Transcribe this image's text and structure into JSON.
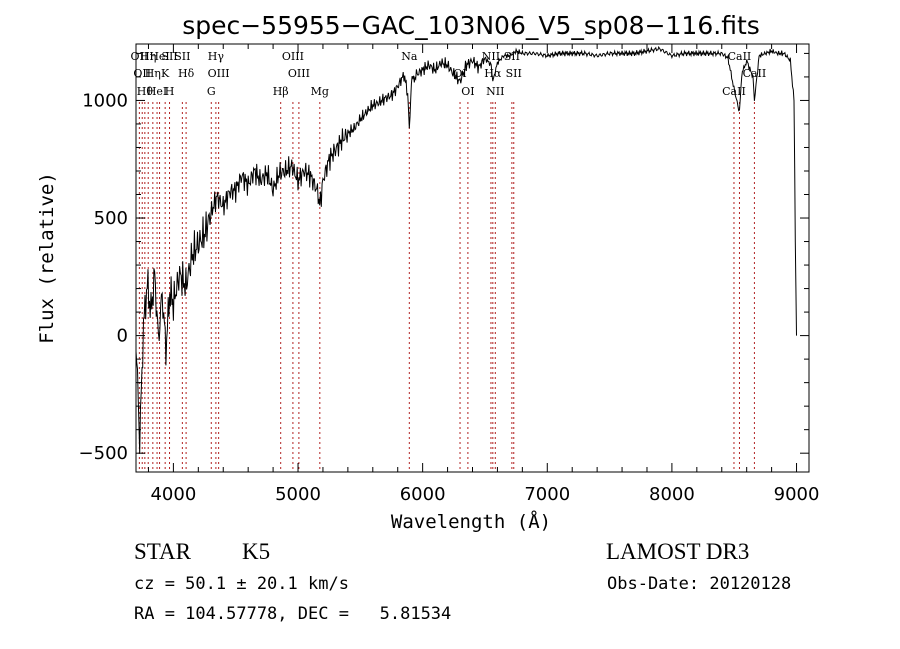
{
  "chart_data": {
    "type": "line",
    "title": "spec−55955−GAC_103N06_V5_sp08−116.fits",
    "xlabel": "Wavelength (Å)",
    "ylabel": "Flux (relative)",
    "xlim": [
      3700,
      9100
    ],
    "ylim": [
      -580,
      1240
    ],
    "xticks": [
      4000,
      5000,
      6000,
      7000,
      8000,
      9000
    ],
    "yticks": [
      -500,
      0,
      500,
      1000
    ],
    "grid": false,
    "series": [
      {
        "name": "flux",
        "x": [
          3700,
          3730,
          3760,
          3790,
          3820,
          3850,
          3880,
          3910,
          3940,
          3970,
          4000,
          4050,
          4100,
          4150,
          4200,
          4250,
          4300,
          4350,
          4400,
          4450,
          4500,
          4550,
          4600,
          4650,
          4700,
          4750,
          4800,
          4850,
          4900,
          4950,
          5000,
          5050,
          5100,
          5150,
          5180,
          5200,
          5250,
          5300,
          5350,
          5400,
          5450,
          5500,
          5550,
          5600,
          5650,
          5700,
          5750,
          5800,
          5850,
          5880,
          5893,
          5910,
          5950,
          6000,
          6050,
          6100,
          6150,
          6200,
          6250,
          6300,
          6350,
          6400,
          6450,
          6500,
          6550,
          6563,
          6600,
          6650,
          6700,
          6750,
          6800,
          6900,
          7000,
          7100,
          7200,
          7300,
          7400,
          7500,
          7600,
          7700,
          7800,
          7900,
          8000,
          8100,
          8200,
          8300,
          8400,
          8450,
          8498,
          8542,
          8560,
          8600,
          8650,
          8662,
          8700,
          8750,
          8800,
          8850,
          8900,
          8950,
          8980,
          8990,
          9000
        ],
        "y": [
          -20,
          -450,
          40,
          220,
          100,
          260,
          -20,
          180,
          -60,
          180,
          140,
          260,
          210,
          340,
          390,
          430,
          520,
          590,
          550,
          610,
          620,
          680,
          640,
          700,
          660,
          690,
          620,
          690,
          700,
          720,
          660,
          700,
          680,
          620,
          560,
          660,
          750,
          790,
          830,
          860,
          880,
          920,
          950,
          980,
          990,
          1010,
          1020,
          1060,
          1110,
          1030,
          880,
          1080,
          1110,
          1130,
          1150,
          1130,
          1160,
          1150,
          1110,
          1080,
          1150,
          1170,
          1140,
          1180,
          1150,
          1080,
          1160,
          1190,
          1190,
          1210,
          1200,
          1200,
          1190,
          1200,
          1200,
          1200,
          1190,
          1200,
          1200,
          1200,
          1210,
          1220,
          1190,
          1200,
          1200,
          1200,
          1200,
          1180,
          1050,
          950,
          1110,
          1170,
          1100,
          1000,
          1190,
          1200,
          1210,
          1200,
          1200,
          1170,
          1000,
          400,
          0
        ]
      }
    ],
    "lines": [
      {
        "wave": 3727,
        "labels": [
          "OII"
        ]
      },
      {
        "wave": 3750,
        "labels": [
          "OII"
        ]
      },
      {
        "wave": 3771,
        "labels": [
          "Hθ"
        ]
      },
      {
        "wave": 3798,
        "labels": [
          "Hη"
        ]
      },
      {
        "wave": 3835,
        "labels": [
          "Hη"
        ]
      },
      {
        "wave": 3869,
        "labels": [
          "HeI"
        ]
      },
      {
        "wave": 3889,
        "labels": [
          "HeI"
        ]
      },
      {
        "wave": 3934,
        "labels": [
          "K"
        ]
      },
      {
        "wave": 3969,
        "labels": [
          "H",
          "SII"
        ]
      },
      {
        "wave": 4072,
        "labels": [
          "SII"
        ]
      },
      {
        "wave": 4102,
        "labels": [
          "Hδ"
        ]
      },
      {
        "wave": 4304,
        "labels": [
          "G"
        ]
      },
      {
        "wave": 4341,
        "labels": [
          "Hγ"
        ]
      },
      {
        "wave": 4363,
        "labels": [
          "OIII"
        ]
      },
      {
        "wave": 4861,
        "labels": [
          "Hβ"
        ]
      },
      {
        "wave": 4959,
        "labels": [
          "OIII"
        ]
      },
      {
        "wave": 5007,
        "labels": [
          "OIII"
        ]
      },
      {
        "wave": 5175,
        "labels": [
          "Mg"
        ]
      },
      {
        "wave": 5893,
        "labels": [
          "Na"
        ]
      },
      {
        "wave": 6300,
        "labels": [
          "OI"
        ]
      },
      {
        "wave": 6363,
        "labels": [
          "OI"
        ]
      },
      {
        "wave": 6548,
        "labels": [
          "NII"
        ]
      },
      {
        "wave": 6563,
        "labels": [
          "Hα"
        ]
      },
      {
        "wave": 6583,
        "labels": [
          "NII"
        ]
      },
      {
        "wave": 6716,
        "labels": [
          "SII"
        ]
      },
      {
        "wave": 6731,
        "labels": [
          "SII"
        ]
      },
      {
        "wave": 8498,
        "labels": [
          "CaII"
        ]
      },
      {
        "wave": 8542,
        "labels": [
          "CaII"
        ]
      },
      {
        "wave": 8662,
        "labels": [
          "CaII"
        ]
      }
    ]
  },
  "footer": {
    "object_type": "STAR",
    "subclass": "K5",
    "survey": "LAMOST DR3",
    "redshift": "cz = 50.1 ± 20.1 km/s",
    "obs_date": "Obs-Date: 20120128",
    "coords": "RA = 104.57778, DEC =   5.81534"
  }
}
